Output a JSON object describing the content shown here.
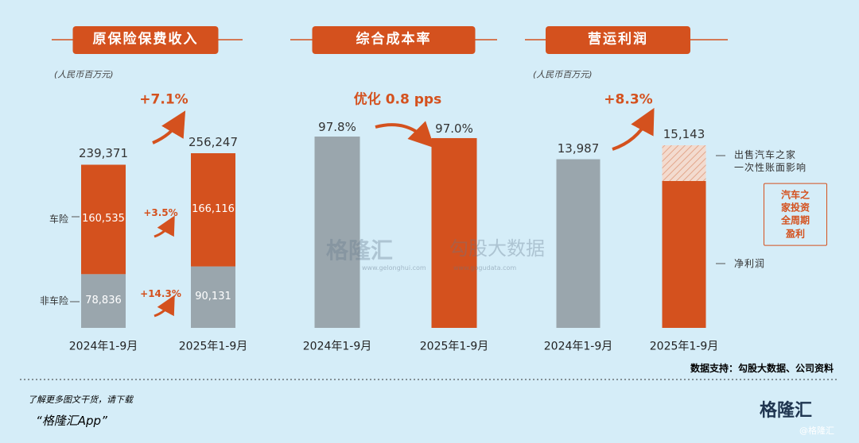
{
  "chart_data": [
    {
      "type": "stacked-bar",
      "title": "原保险保费收入",
      "unit_note": "(人民币百万元)",
      "categories": [
        "2024年1-9月",
        "2025年1-9月"
      ],
      "series": [
        {
          "name": "非车险",
          "color": "#9aa6ad",
          "values": [
            78836,
            90131
          ],
          "value_labels": [
            "78,836",
            "90,131"
          ]
        },
        {
          "name": "车险",
          "color": "#d4511e",
          "values": [
            160535,
            166116
          ],
          "value_labels": [
            "160,535",
            "166,116"
          ]
        }
      ],
      "totals": [
        239371,
        256247
      ],
      "total_labels": [
        "239,371",
        "256,247"
      ],
      "annotations": [
        "+7.1%",
        "+3.5%",
        "+14.3%"
      ]
    },
    {
      "type": "bar",
      "title": "综合成本率",
      "categories": [
        "2024年1-9月",
        "2025年1-9月"
      ],
      "values": [
        97.8,
        97.0
      ],
      "value_labels": [
        "97.8%",
        "97.0%"
      ],
      "colors": [
        "#9aa6ad",
        "#d4511e"
      ],
      "annotations": [
        "优化 0.8 pps"
      ]
    },
    {
      "type": "stacked-bar",
      "title": "营运利润",
      "unit_note": "(人民币百万元)",
      "categories": [
        "2024年1-9月",
        "2025年1-9月"
      ],
      "series": [
        {
          "name": "净利润",
          "colors": [
            "#9aa6ad",
            "#d4511e"
          ],
          "values": [
            13987,
            12180
          ]
        },
        {
          "name": "出售汽车之家\n一次性账面影响",
          "color": "#e3a78c",
          "hatch": true,
          "values": [
            null,
            2963
          ]
        }
      ],
      "totals": [
        13987,
        15143
      ],
      "total_labels": [
        "13,987",
        "15,143"
      ],
      "annotations": [
        "+8.3%",
        "汽车之家投资\n全周期盈利"
      ]
    }
  ],
  "source": "数据支持：勾股大数据、公司资料",
  "footer": {
    "line1": "了解更多图文干货，请下载",
    "app": "“格隆汇App”",
    "logo": "格隆汇",
    "handle": "@格隆汇"
  },
  "watermark": {
    "brand": "格隆汇",
    "brand_url": "www.gelonghui.com",
    "data": "勾股大数据",
    "data_url": "www.gogudata.com"
  }
}
